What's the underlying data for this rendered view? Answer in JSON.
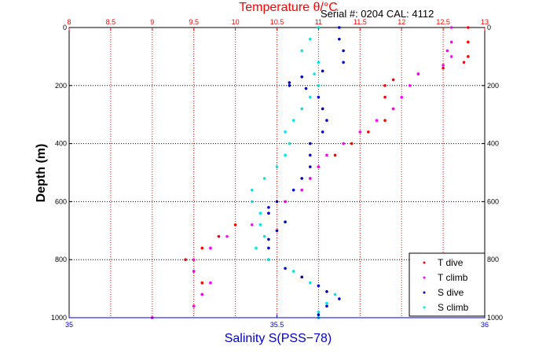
{
  "chart_data": {
    "type": "scatter",
    "serial_text": "Serial #: 0204  CAL: 4112",
    "top_axis_label": "Temperature θ/°C",
    "ylabel": "Depth (m)",
    "bottom_axis_label": "Salinity S(PSS−78)",
    "temperature_axis": {
      "range": [
        8,
        13
      ],
      "ticks": [
        "8",
        "8.5",
        "9",
        "9.5",
        "10",
        "10.5",
        "11",
        "11.5",
        "12",
        "12.5",
        "13"
      ]
    },
    "salinity_axis": {
      "range": [
        35,
        36
      ],
      "ticks": [
        "35",
        "35.5",
        "36"
      ]
    },
    "depth_axis": {
      "range": [
        0,
        1000
      ],
      "reversed": true,
      "ticks": [
        "0",
        "200",
        "400",
        "600",
        "800",
        "1000"
      ]
    },
    "grid": true,
    "legend_position": "bottom-right",
    "series": [
      {
        "name": "T dive",
        "color": "#ff0000",
        "x_axis": "temperature",
        "depth": [
          0,
          50,
          100,
          120,
          140,
          160,
          180,
          200,
          240,
          280,
          320,
          360,
          400,
          440,
          480,
          520,
          560,
          600,
          640,
          680,
          720,
          760,
          800,
          840,
          880,
          920,
          960,
          1000
        ],
        "values": [
          12.8,
          12.8,
          12.8,
          12.75,
          12.5,
          12.2,
          11.9,
          11.8,
          11.8,
          11.9,
          11.8,
          11.6,
          11.4,
          11.2,
          11.0,
          10.9,
          10.8,
          10.6,
          10.4,
          10.0,
          9.8,
          9.6,
          9.4,
          9.5,
          9.6,
          9.6,
          9.5,
          9.0
        ]
      },
      {
        "name": "T climb",
        "color": "#ff00ff",
        "x_axis": "temperature",
        "depth": [
          0,
          50,
          80,
          100,
          130,
          160,
          200,
          240,
          280,
          320,
          360,
          400,
          440,
          480,
          520,
          560,
          600,
          640,
          680,
          720,
          760,
          800,
          840,
          880,
          920,
          960,
          1000
        ],
        "values": [
          12.6,
          12.6,
          12.55,
          12.6,
          12.5,
          12.2,
          12.1,
          12.0,
          11.9,
          11.7,
          11.5,
          11.3,
          11.1,
          11.0,
          10.9,
          10.8,
          10.6,
          10.4,
          10.2,
          9.9,
          9.7,
          9.5,
          9.5,
          9.7,
          9.6,
          9.5,
          9.0
        ]
      },
      {
        "name": "S dive",
        "color": "#0000cd",
        "x_axis": "salinity",
        "depth": [
          0,
          40,
          80,
          120,
          150,
          170,
          190,
          200,
          210,
          240,
          280,
          320,
          360,
          400,
          440,
          480,
          520,
          560,
          600,
          620,
          640,
          670,
          700,
          730,
          760,
          800,
          830,
          860,
          890,
          910,
          935,
          960,
          990,
          1000
        ],
        "values": [
          35.65,
          35.65,
          35.66,
          35.66,
          35.61,
          35.56,
          35.53,
          35.53,
          35.57,
          35.6,
          35.61,
          35.62,
          35.61,
          35.58,
          35.58,
          35.58,
          35.56,
          35.54,
          35.5,
          35.48,
          35.48,
          35.52,
          35.5,
          35.48,
          35.48,
          35.48,
          35.52,
          35.56,
          35.6,
          35.62,
          35.65,
          35.62,
          35.6,
          35.6
        ]
      },
      {
        "name": "S climb",
        "color": "#00e5e5",
        "x_axis": "salinity",
        "depth": [
          0,
          40,
          80,
          120,
          160,
          200,
          240,
          280,
          320,
          360,
          400,
          440,
          480,
          520,
          560,
          600,
          640,
          680,
          720,
          760,
          800,
          840,
          880,
          920,
          950,
          980,
          1000
        ],
        "values": [
          35.6,
          35.58,
          35.56,
          35.6,
          35.59,
          35.6,
          35.58,
          35.56,
          35.54,
          35.52,
          35.53,
          35.52,
          35.5,
          35.47,
          35.44,
          35.44,
          35.46,
          35.46,
          35.47,
          35.45,
          35.48,
          35.54,
          35.58,
          35.64,
          35.62,
          35.6,
          35.6
        ]
      }
    ]
  }
}
